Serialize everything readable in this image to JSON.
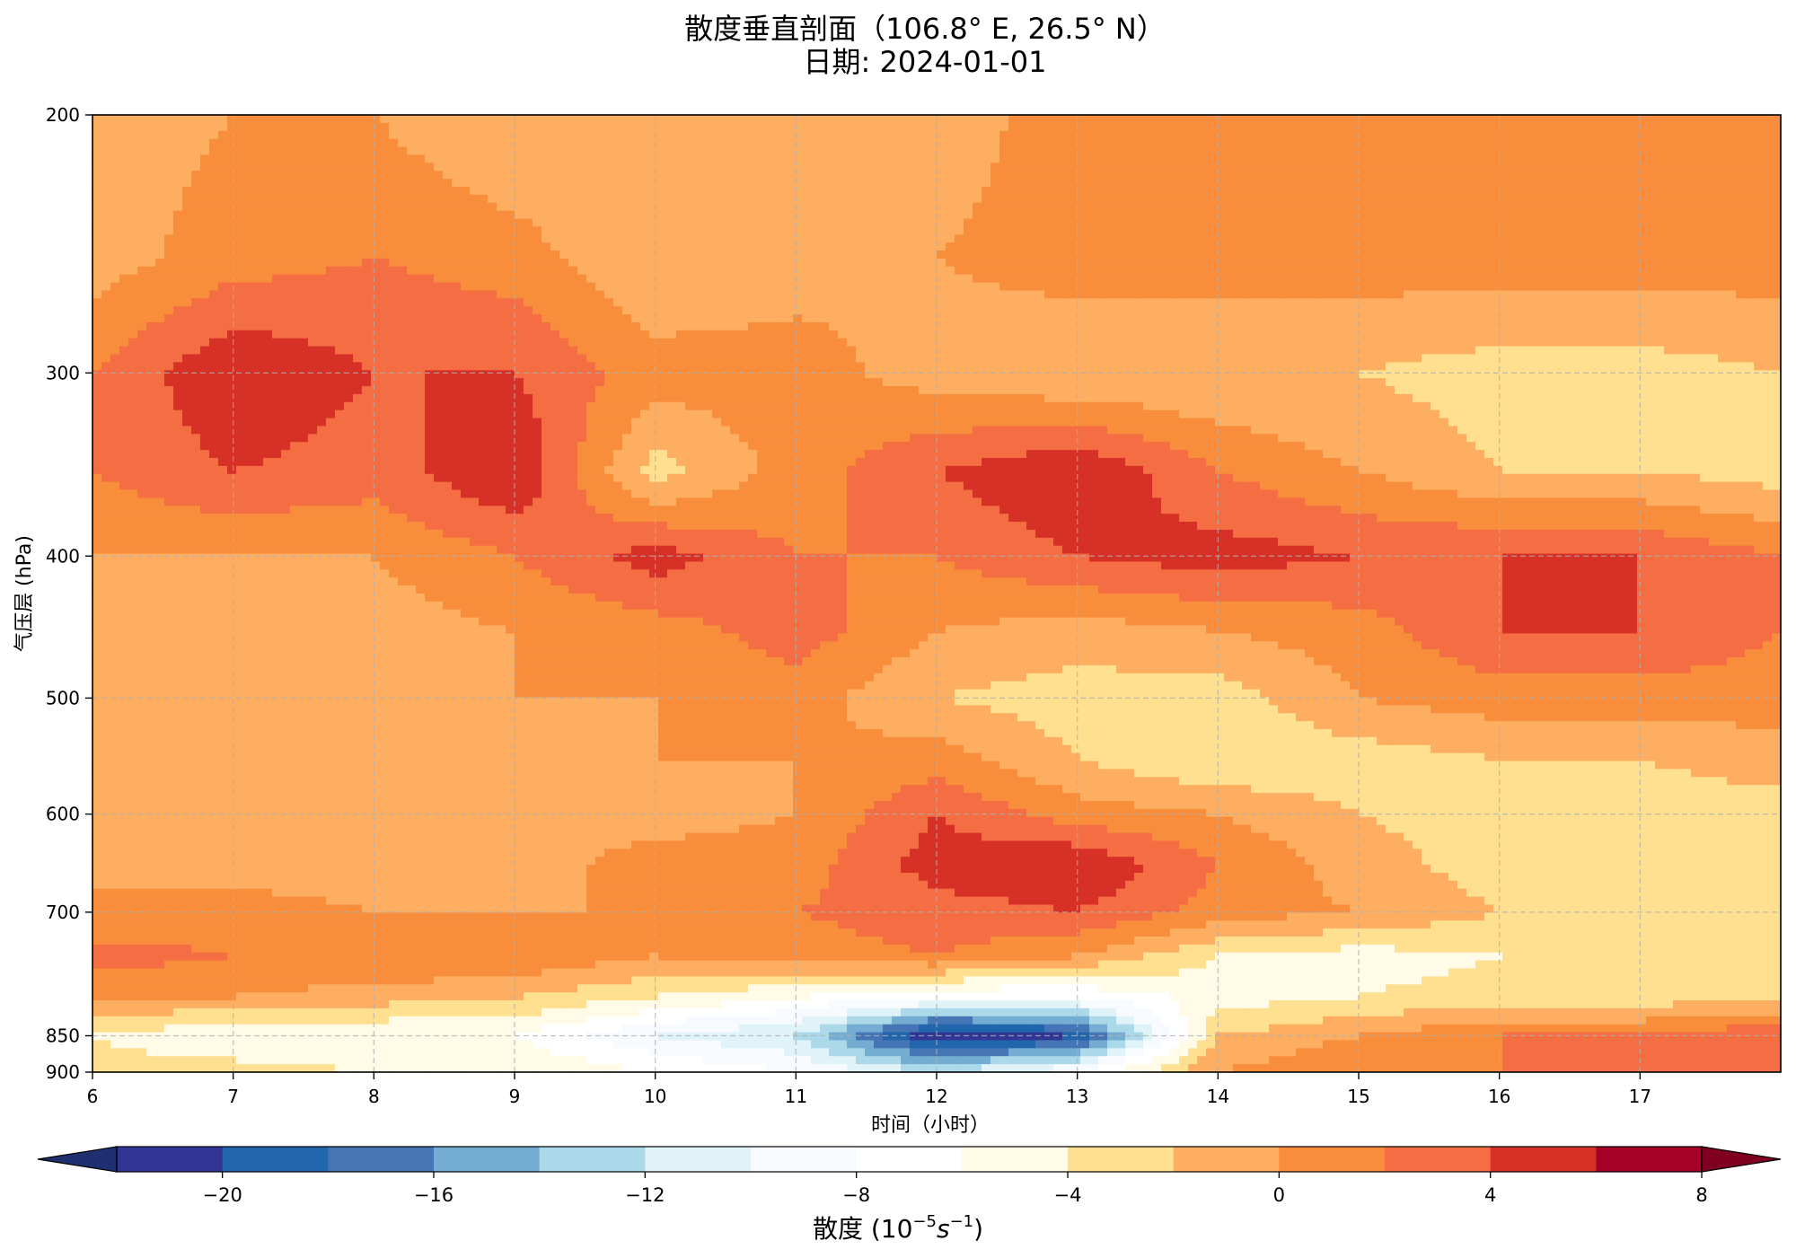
{
  "chart_data": {
    "type": "contourf",
    "title": "散度垂直剖面（106.8° E, 26.5° N）",
    "subtitle": "日期: 2024-01-01",
    "xlabel": "时间（小时）",
    "ylabel": "气压层 (hPa)",
    "xlim": [
      6,
      18
    ],
    "ylim": [
      200,
      900
    ],
    "y_scale": "log",
    "y_inverted": true,
    "grid": true,
    "grid_style": "dashed",
    "x_ticks": [
      6,
      7,
      8,
      9,
      10,
      11,
      12,
      13,
      14,
      15,
      16,
      17
    ],
    "y_ticks": [
      200,
      300,
      400,
      500,
      600,
      700,
      850,
      900
    ],
    "x": [
      6,
      7,
      8,
      9,
      10,
      11,
      12,
      13,
      14,
      15,
      16,
      17,
      18
    ],
    "levels_hpa": [
      200,
      250,
      300,
      350,
      400,
      450,
      500,
      550,
      600,
      650,
      700,
      750,
      800,
      850,
      900
    ],
    "values": [
      [
        -1,
        0,
        0,
        -2,
        -2,
        -1,
        -1,
        1,
        1,
        2,
        2,
        2,
        2
      ],
      [
        -1,
        1,
        2,
        1,
        -2,
        -1,
        0,
        1,
        1,
        1,
        1,
        1,
        1
      ],
      [
        2,
        6,
        4,
        4,
        1,
        1,
        -1,
        -2,
        -2,
        -2,
        -3,
        -3,
        -2
      ],
      [
        2,
        4,
        3,
        6,
        -3,
        1,
        4,
        6,
        2,
        0,
        -2,
        -2,
        -3
      ],
      [
        0,
        0,
        0,
        2,
        5,
        2,
        2,
        4,
        5,
        4,
        4,
        4,
        2
      ],
      [
        -1,
        -2,
        -1,
        0,
        1,
        3,
        0,
        -1,
        0,
        1,
        4,
        4,
        2
      ],
      [
        -1,
        -2,
        -1,
        0,
        0,
        1,
        -2,
        -3,
        -3,
        0,
        1,
        1,
        1
      ],
      [
        -1,
        0,
        -1,
        -1,
        0,
        0,
        1,
        -2,
        -4,
        -3,
        -2,
        -2,
        -1
      ],
      [
        -1,
        -2,
        -2,
        -1,
        -1,
        0,
        4,
        1,
        0,
        -2,
        -3,
        -3,
        -3
      ],
      [
        0,
        -1,
        -1,
        -1,
        1,
        1,
        5,
        6,
        2,
        -1,
        -3,
        -4,
        -3
      ],
      [
        0,
        1,
        0,
        0,
        0,
        2,
        3,
        4,
        1,
        0,
        -2,
        -3,
        -3
      ],
      [
        3,
        2,
        2,
        2,
        0,
        1,
        2,
        0,
        -4,
        -5,
        -4,
        -4,
        -3
      ],
      [
        0,
        0,
        -1,
        -2,
        -4,
        -6,
        -8,
        -8,
        -5,
        -4,
        -3,
        -3,
        -3
      ],
      [
        -4,
        -6,
        -6,
        -6,
        -10,
        -12,
        -22,
        -20,
        -2,
        0,
        2,
        2,
        4
      ],
      [
        -3,
        -3,
        -4,
        -4,
        -6,
        -8,
        -12,
        -8,
        0,
        2,
        2,
        2,
        2
      ]
    ],
    "colorbar": {
      "label_main": "散度 (",
      "label_math": "10",
      "label_sup1": "−5",
      "label_s": "s",
      "label_sup2": "−1",
      "label_close": ")",
      "orientation": "horizontal",
      "extend": "both",
      "levels": [
        -22,
        -20,
        -18,
        -16,
        -14,
        -12,
        -10,
        -8,
        -6,
        -4,
        -2,
        0,
        2,
        4,
        6,
        8
      ],
      "tick_values": [
        -20,
        -16,
        -12,
        -8,
        -4,
        0,
        4,
        8
      ],
      "tick_labels": [
        "−20",
        "−16",
        "−12",
        "−8",
        "−4",
        "0",
        "4",
        "8"
      ],
      "colors": [
        "#313695",
        "#2166ac",
        "#4575b4",
        "#74add1",
        "#abd9e9",
        "#e0f3f8",
        "#f7fbff",
        "#ffffff",
        "#fffbe6",
        "#fee090",
        "#fdae61",
        "#f88e3b",
        "#f46d43",
        "#d73027",
        "#a50026"
      ],
      "under_color": "#1f2f6f",
      "over_color": "#7f0020"
    }
  }
}
